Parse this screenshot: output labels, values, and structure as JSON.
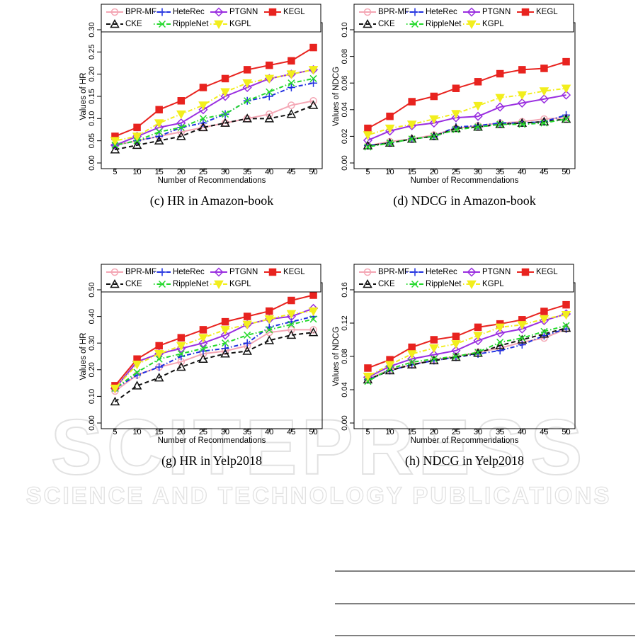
{
  "chart_data": [
    {
      "type": "line",
      "caption": "(c) HR in Amazon-book",
      "x_label": "Number of Recommendations",
      "y_label": "Values of HR",
      "x": [
        5,
        10,
        15,
        20,
        25,
        30,
        35,
        40,
        45,
        50
      ],
      "xlim": [
        3,
        52
      ],
      "xticks": [
        5,
        10,
        15,
        20,
        25,
        30,
        35,
        40,
        45,
        50
      ],
      "ylim": [
        0,
        0.3
      ],
      "yticks": [
        {
          "value": 0,
          "label": "0.00"
        },
        {
          "value": 0.05,
          "label": "0.05"
        },
        {
          "value": 0.1,
          "label": "0.10"
        },
        {
          "value": 0.15,
          "label": "0.15"
        },
        {
          "value": 0.2,
          "label": "0.20"
        },
        {
          "value": 0.25,
          "label": "0.25"
        },
        {
          "value": 0.3,
          "label": "0.30"
        }
      ],
      "legend": "top",
      "series": [
        {
          "name": "BPR-MF",
          "color": "#f4a6b4",
          "marker": "circle",
          "line_style": "solid",
          "values": [
            0.04,
            0.05,
            0.06,
            0.07,
            0.08,
            0.09,
            0.1,
            0.11,
            0.13,
            0.14
          ]
        },
        {
          "name": "HeteRec",
          "color": "#1f2fe0",
          "marker": "plus",
          "line_style": "dotdash",
          "values": [
            0.04,
            0.05,
            0.06,
            0.08,
            0.09,
            0.11,
            0.14,
            0.15,
            0.17,
            0.18
          ]
        },
        {
          "name": "PTGNN",
          "color": "#9a2fe0",
          "marker": "diamond",
          "line_style": "solid",
          "values": [
            0.04,
            0.06,
            0.08,
            0.09,
            0.12,
            0.15,
            0.17,
            0.19,
            0.2,
            0.21
          ]
        },
        {
          "name": "KEGL",
          "color": "#e8231f",
          "marker": "square",
          "line_style": "solid",
          "values": [
            0.06,
            0.08,
            0.12,
            0.14,
            0.17,
            0.19,
            0.21,
            0.22,
            0.23,
            0.26
          ]
        },
        {
          "name": "CKE",
          "color": "#111111",
          "marker": "triangle",
          "line_style": "dashed",
          "values": [
            0.03,
            0.04,
            0.05,
            0.06,
            0.08,
            0.09,
            0.1,
            0.1,
            0.11,
            0.13
          ]
        },
        {
          "name": "RippleNet",
          "color": "#22d82a",
          "marker": "x",
          "line_style": "dotdash",
          "values": [
            0.04,
            0.05,
            0.07,
            0.08,
            0.1,
            0.11,
            0.14,
            0.16,
            0.18,
            0.19
          ]
        },
        {
          "name": "KGPL",
          "color": "#f2ee1c",
          "marker": "triangle-down",
          "line_style": "dotdash",
          "values": [
            0.05,
            0.06,
            0.09,
            0.11,
            0.13,
            0.16,
            0.18,
            0.19,
            0.2,
            0.21
          ]
        }
      ]
    },
    {
      "type": "line",
      "caption": "(d) NDCG in Amazon-book",
      "x_label": "Number of Recommendations",
      "y_label": "Values of NDCG",
      "x": [
        5,
        10,
        15,
        20,
        25,
        30,
        35,
        40,
        45,
        50
      ],
      "xlim": [
        3,
        52
      ],
      "xticks": [
        5,
        10,
        15,
        20,
        25,
        30,
        35,
        40,
        45,
        50
      ],
      "ylim": [
        0,
        0.1
      ],
      "yticks": [
        {
          "value": 0,
          "label": "0.00"
        },
        {
          "value": 0.02,
          "label": "0.02"
        },
        {
          "value": 0.04,
          "label": "0.04"
        },
        {
          "value": 0.06,
          "label": "0.06"
        },
        {
          "value": 0.08,
          "label": "0.08"
        },
        {
          "value": 0.1,
          "label": "0.10"
        }
      ],
      "legend": "top",
      "series": [
        {
          "name": "BPR-MF",
          "color": "#f4a6b4",
          "marker": "circle",
          "line_style": "solid",
          "values": [
            0.013,
            0.016,
            0.018,
            0.021,
            0.026,
            0.028,
            0.03,
            0.031,
            0.033,
            0.034
          ]
        },
        {
          "name": "HeteRec",
          "color": "#1f2fe0",
          "marker": "plus",
          "line_style": "dotdash",
          "values": [
            0.013,
            0.015,
            0.018,
            0.02,
            0.027,
            0.028,
            0.03,
            0.03,
            0.031,
            0.036
          ]
        },
        {
          "name": "PTGNN",
          "color": "#9a2fe0",
          "marker": "diamond",
          "line_style": "solid",
          "values": [
            0.017,
            0.024,
            0.028,
            0.03,
            0.034,
            0.035,
            0.042,
            0.045,
            0.048,
            0.051
          ]
        },
        {
          "name": "KEGL",
          "color": "#e8231f",
          "marker": "square",
          "line_style": "solid",
          "values": [
            0.026,
            0.035,
            0.046,
            0.05,
            0.056,
            0.061,
            0.067,
            0.07,
            0.071,
            0.076
          ]
        },
        {
          "name": "CKE",
          "color": "#111111",
          "marker": "triangle",
          "line_style": "dashed",
          "values": [
            0.013,
            0.015,
            0.018,
            0.02,
            0.026,
            0.027,
            0.029,
            0.03,
            0.031,
            0.033
          ]
        },
        {
          "name": "RippleNet",
          "color": "#22d82a",
          "marker": "x",
          "line_style": "dotdash",
          "values": [
            0.012,
            0.015,
            0.018,
            0.02,
            0.025,
            0.027,
            0.029,
            0.029,
            0.03,
            0.033
          ]
        },
        {
          "name": "KGPL",
          "color": "#f2ee1c",
          "marker": "triangle-down",
          "line_style": "dotdash",
          "values": [
            0.021,
            0.026,
            0.029,
            0.033,
            0.037,
            0.043,
            0.049,
            0.051,
            0.054,
            0.056
          ]
        }
      ]
    },
    {
      "type": "line",
      "caption": "(g) HR in Yelp2018",
      "x_label": "Number of Recommendations",
      "y_label": "Values of HR",
      "x": [
        5,
        10,
        15,
        20,
        25,
        30,
        35,
        40,
        45,
        50
      ],
      "xlim": [
        3,
        52
      ],
      "xticks": [
        5,
        10,
        15,
        20,
        25,
        30,
        35,
        40,
        45,
        50
      ],
      "ylim": [
        0,
        0.5
      ],
      "yticks": [
        {
          "value": 0,
          "label": "0.00"
        },
        {
          "value": 0.1,
          "label": "0.10"
        },
        {
          "value": 0.2,
          "label": "0.20"
        },
        {
          "value": 0.3,
          "label": "0.30"
        },
        {
          "value": 0.4,
          "label": "0.40"
        },
        {
          "value": 0.5,
          "label": "0.50"
        }
      ],
      "legend": "top",
      "series": [
        {
          "name": "BPR-MF",
          "color": "#f4a6b4",
          "marker": "circle",
          "line_style": "solid",
          "values": [
            0.12,
            0.18,
            0.21,
            0.23,
            0.26,
            0.27,
            0.29,
            0.34,
            0.35,
            0.35
          ]
        },
        {
          "name": "HeteRec",
          "color": "#1f2fe0",
          "marker": "plus",
          "line_style": "dotdash",
          "values": [
            0.13,
            0.18,
            0.21,
            0.25,
            0.27,
            0.28,
            0.3,
            0.36,
            0.38,
            0.4
          ]
        },
        {
          "name": "PTGNN",
          "color": "#9a2fe0",
          "marker": "diamond",
          "line_style": "solid",
          "values": [
            0.13,
            0.23,
            0.26,
            0.28,
            0.3,
            0.33,
            0.37,
            0.39,
            0.4,
            0.43
          ]
        },
        {
          "name": "KEGL",
          "color": "#e8231f",
          "marker": "square",
          "line_style": "solid",
          "values": [
            0.14,
            0.24,
            0.29,
            0.32,
            0.35,
            0.38,
            0.4,
            0.42,
            0.46,
            0.48
          ]
        },
        {
          "name": "CKE",
          "color": "#111111",
          "marker": "triangle",
          "line_style": "dashed",
          "values": [
            0.08,
            0.14,
            0.17,
            0.21,
            0.24,
            0.26,
            0.27,
            0.31,
            0.33,
            0.34
          ]
        },
        {
          "name": "RippleNet",
          "color": "#22d82a",
          "marker": "x",
          "line_style": "dotdash",
          "values": [
            0.13,
            0.19,
            0.24,
            0.26,
            0.28,
            0.3,
            0.33,
            0.35,
            0.37,
            0.39
          ]
        },
        {
          "name": "KGPL",
          "color": "#f2ee1c",
          "marker": "triangle-down",
          "line_style": "dotdash",
          "values": [
            0.13,
            0.22,
            0.26,
            0.29,
            0.32,
            0.35,
            0.37,
            0.39,
            0.41,
            0.42
          ]
        }
      ]
    },
    {
      "type": "line",
      "caption": "(h) NDCG in Yelp2018",
      "x_label": "Number of Recommendations",
      "y_label": "Values of NDCG",
      "x": [
        5,
        10,
        15,
        20,
        25,
        30,
        35,
        40,
        45,
        50
      ],
      "xlim": [
        3,
        52
      ],
      "xticks": [
        5,
        10,
        15,
        20,
        25,
        30,
        35,
        40,
        45,
        50
      ],
      "ylim": [
        0,
        0.16
      ],
      "yticks": [
        {
          "value": 0,
          "label": "0.00"
        },
        {
          "value": 0.04,
          "label": "0.04"
        },
        {
          "value": 0.08,
          "label": "0.08"
        },
        {
          "value": 0.12,
          "label": "0.12"
        },
        {
          "value": 0.16,
          "label": "0.16"
        }
      ],
      "legend": "top",
      "series": [
        {
          "name": "BPR-MF",
          "color": "#f4a6b4",
          "marker": "circle",
          "line_style": "solid",
          "values": [
            0.053,
            0.064,
            0.07,
            0.076,
            0.08,
            0.085,
            0.09,
            0.097,
            0.102,
            0.113
          ]
        },
        {
          "name": "HeteRec",
          "color": "#1f2fe0",
          "marker": "plus",
          "line_style": "dotdash",
          "values": [
            0.052,
            0.063,
            0.07,
            0.075,
            0.079,
            0.083,
            0.087,
            0.094,
            0.105,
            0.113
          ]
        },
        {
          "name": "PTGNN",
          "color": "#9a2fe0",
          "marker": "diamond",
          "line_style": "solid",
          "values": [
            0.055,
            0.068,
            0.077,
            0.082,
            0.087,
            0.099,
            0.108,
            0.113,
            0.123,
            0.131
          ]
        },
        {
          "name": "KEGL",
          "color": "#e8231f",
          "marker": "square",
          "line_style": "solid",
          "values": [
            0.066,
            0.076,
            0.091,
            0.1,
            0.104,
            0.115,
            0.119,
            0.124,
            0.134,
            0.142
          ]
        },
        {
          "name": "CKE",
          "color": "#111111",
          "marker": "triangle",
          "line_style": "dashed",
          "values": [
            0.052,
            0.063,
            0.07,
            0.075,
            0.079,
            0.084,
            0.093,
            0.1,
            0.107,
            0.114
          ]
        },
        {
          "name": "RippleNet",
          "color": "#22d82a",
          "marker": "x",
          "line_style": "dotdash",
          "values": [
            0.05,
            0.065,
            0.073,
            0.077,
            0.08,
            0.085,
            0.097,
            0.102,
            0.11,
            0.117
          ]
        },
        {
          "name": "KGPL",
          "color": "#f2ee1c",
          "marker": "triangle-down",
          "line_style": "dotdash",
          "values": [
            0.056,
            0.07,
            0.083,
            0.09,
            0.095,
            0.105,
            0.115,
            0.118,
            0.125,
            0.13
          ]
        }
      ]
    }
  ],
  "watermark": {
    "title": "SCITEPRESS",
    "subtitle": "SCIENCE AND TECHNOLOGY PUBLICATIONS"
  }
}
